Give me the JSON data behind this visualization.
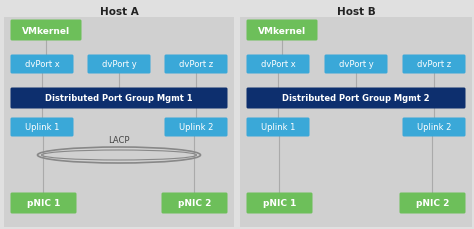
{
  "bg_color": "#e0e0e0",
  "panel_color": "#d0d0d0",
  "green_color": "#6dbf5a",
  "blue_color": "#3aa8d8",
  "dark_blue_color": "#0d2f6e",
  "host_a_title": "Host A",
  "host_b_title": "Host B",
  "vmkernel_label": "VMkernel",
  "dvport_x_label": "dvPort x",
  "dvport_y_label": "dvPort y",
  "dvport_z_label": "dvPort z",
  "dpg_label_a": "Distributed Port Group Mgmt 1",
  "dpg_label_b": "Distributed Port Group Mgmt 2",
  "uplink1_label": "Uplink 1",
  "uplink2_label": "Uplink 2",
  "pnic1_label": "pNIC 1",
  "pnic2_label": "pNIC 2",
  "lacp_label": "LACP",
  "line_color": "#aaaaaa",
  "lacp_color": "#888888"
}
